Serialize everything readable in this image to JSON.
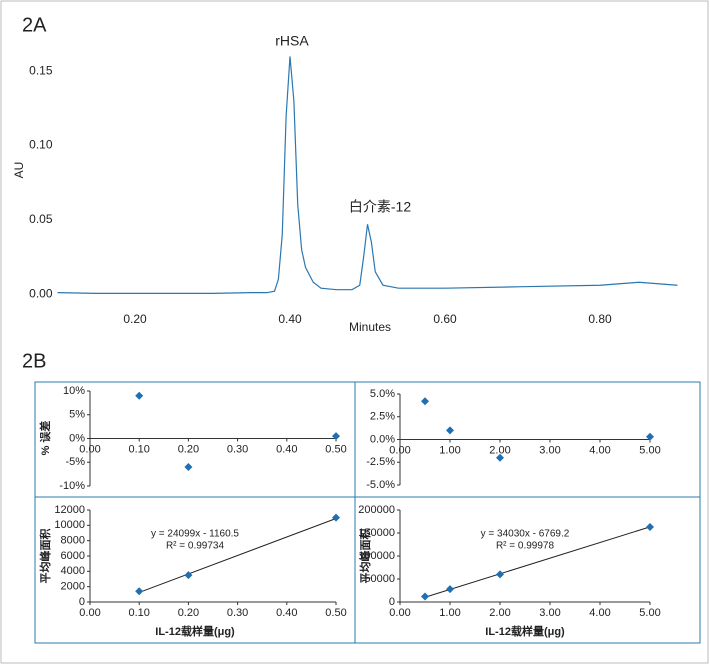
{
  "chart_data": [
    {
      "type": "line",
      "panel": "2A",
      "y_label": "AU",
      "x_label": "Minutes",
      "color": "#2a77b0",
      "annotations": [
        "rHSA",
        "白介素-12"
      ],
      "x": [
        0.1,
        0.15,
        0.2,
        0.25,
        0.3,
        0.35,
        0.37,
        0.38,
        0.385,
        0.39,
        0.395,
        0.4,
        0.405,
        0.41,
        0.415,
        0.42,
        0.43,
        0.44,
        0.46,
        0.48,
        0.49,
        0.495,
        0.5,
        0.505,
        0.51,
        0.52,
        0.54,
        0.6,
        0.7,
        0.8,
        0.85,
        0.9
      ],
      "values": [
        0.001,
        0.0005,
        0.0005,
        0.0005,
        0.0005,
        0.001,
        0.001,
        0.002,
        0.01,
        0.04,
        0.12,
        0.16,
        0.13,
        0.06,
        0.03,
        0.018,
        0.008,
        0.004,
        0.003,
        0.003,
        0.006,
        0.025,
        0.047,
        0.035,
        0.015,
        0.006,
        0.004,
        0.004,
        0.005,
        0.006,
        0.008,
        0.006
      ],
      "xlim": [
        0.1,
        0.9
      ],
      "ylim": [
        -0.01,
        0.165
      ],
      "xticks": [
        {
          "value": 0.2,
          "label": "0.20"
        },
        {
          "value": 0.4,
          "label": "0.40"
        },
        {
          "value": 0.6,
          "label": "0.60"
        },
        {
          "value": 0.8,
          "label": "0.80"
        }
      ],
      "yticks": [
        {
          "value": 0,
          "label": "0.00"
        },
        {
          "value": 0.05,
          "label": "0.05"
        },
        {
          "value": 0.1,
          "label": "0.10"
        },
        {
          "value": 0.15,
          "label": "0.15"
        }
      ]
    },
    {
      "type": "scatter",
      "panel": "2B",
      "y_label": "% 误差",
      "color": "#1f6fb2",
      "x": [
        0.1,
        0.2,
        0.5
      ],
      "values": [
        9,
        -6,
        0.5
      ],
      "xlim": [
        0,
        0.5
      ],
      "ylim": [
        -10,
        10
      ],
      "xticks": [
        {
          "value": 0,
          "label": "0.00"
        },
        {
          "value": 0.1,
          "label": "0.10"
        },
        {
          "value": 0.2,
          "label": "0.20"
        },
        {
          "value": 0.3,
          "label": "0.30"
        },
        {
          "value": 0.4,
          "label": "0.40"
        },
        {
          "value": 0.5,
          "label": "0.50"
        }
      ],
      "yticks": [
        {
          "value": 10,
          "label": "10%"
        },
        {
          "value": 5,
          "label": "5%"
        },
        {
          "value": 0,
          "label": "0%"
        },
        {
          "value": -5,
          "label": "-5%"
        },
        {
          "value": -10,
          "label": "-10%"
        }
      ]
    },
    {
      "type": "scatter",
      "color": "#1f6fb2",
      "x": [
        0.5,
        1.0,
        2.0,
        5.0
      ],
      "values": [
        4.2,
        1.0,
        -2.0,
        0.3
      ],
      "xlim": [
        0,
        5
      ],
      "ylim": [
        -5,
        5
      ],
      "xticks": [
        {
          "value": 0,
          "label": "0.00"
        },
        {
          "value": 1,
          "label": "1.00"
        },
        {
          "value": 2,
          "label": "2.00"
        },
        {
          "value": 3,
          "label": "3.00"
        },
        {
          "value": 4,
          "label": "4.00"
        },
        {
          "value": 5,
          "label": "5.00"
        }
      ],
      "yticks": [
        {
          "value": 5,
          "label": "5.0%"
        },
        {
          "value": 2.5,
          "label": "2.5%"
        },
        {
          "value": 0,
          "label": "0.0%"
        },
        {
          "value": -2.5,
          "label": "-2.5%"
        },
        {
          "value": -5,
          "label": "-5.0%"
        }
      ]
    },
    {
      "type": "scatter",
      "y_label": "平均峰面积",
      "x_label": "IL-12载样量(μg)",
      "color": "#1f6fb2",
      "x": [
        0.1,
        0.2,
        0.5
      ],
      "values": [
        1400,
        3500,
        11000
      ],
      "trendline": {
        "equation": "y = 24099x - 1160.5",
        "r2": "R² = 0.99734",
        "slope": 24099,
        "intercept": -1160.5
      },
      "xlim": [
        0,
        0.5
      ],
      "ylim": [
        0,
        12000
      ],
      "xticks": [
        {
          "value": 0,
          "label": "0.00"
        },
        {
          "value": 0.1,
          "label": "0.10"
        },
        {
          "value": 0.2,
          "label": "0.20"
        },
        {
          "value": 0.3,
          "label": "0.30"
        },
        {
          "value": 0.4,
          "label": "0.40"
        },
        {
          "value": 0.5,
          "label": "0.50"
        }
      ],
      "yticks": [
        0,
        2000,
        4000,
        6000,
        8000,
        10000,
        12000
      ]
    },
    {
      "type": "scatter",
      "y_label": "平均峰面积",
      "x_label": "IL-12载样量(μg)",
      "color": "#1f6fb2",
      "x": [
        0.5,
        1.0,
        2.0,
        5.0
      ],
      "values": [
        12000,
        28000,
        60000,
        163000
      ],
      "trendline": {
        "equation": "y = 34030x - 6769.2",
        "r2": "R² = 0.99978",
        "slope": 34030,
        "intercept": -6769.2
      },
      "xlim": [
        0,
        5
      ],
      "ylim": [
        0,
        200000
      ],
      "xticks": [
        {
          "value": 0,
          "label": "0.00"
        },
        {
          "value": 1,
          "label": "1.00"
        },
        {
          "value": 2,
          "label": "2.00"
        },
        {
          "value": 3,
          "label": "3.00"
        },
        {
          "value": 4,
          "label": "4.00"
        },
        {
          "value": 5,
          "label": "5.00"
        }
      ],
      "yticks": [
        0,
        50000,
        100000,
        150000,
        200000
      ]
    }
  ]
}
